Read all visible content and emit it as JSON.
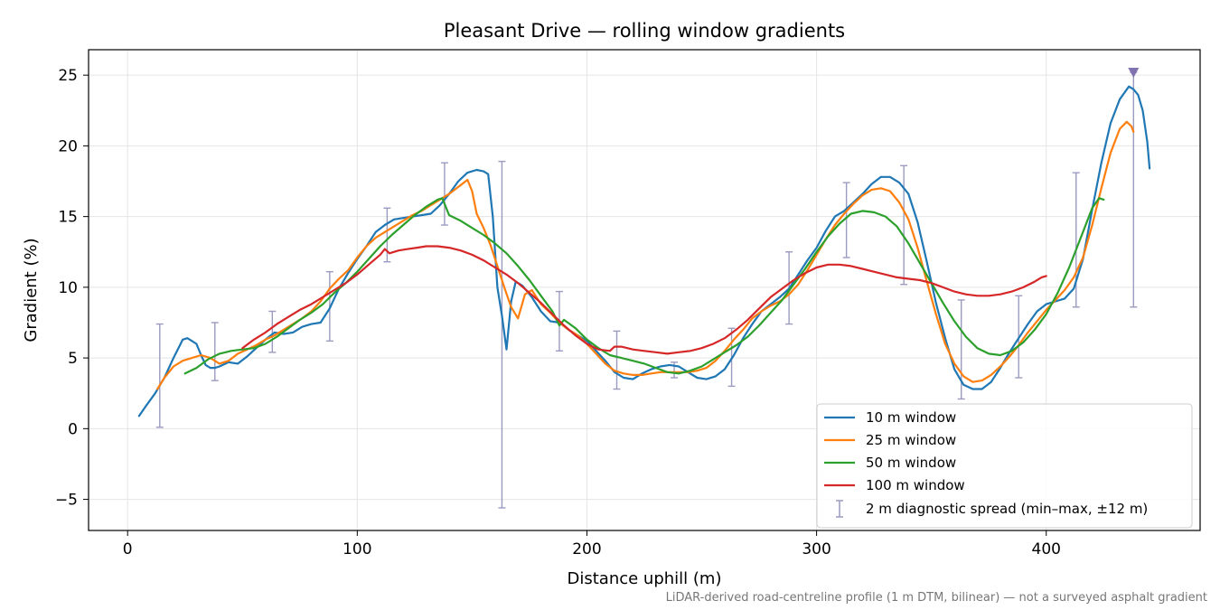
{
  "chart_data": {
    "type": "line",
    "title": "Pleasant Drive — rolling window gradients",
    "xlabel": "Distance uphill (m)",
    "ylabel": "Gradient (%)",
    "xlim": [
      -17,
      467
    ],
    "ylim": [
      -7.2,
      26.8
    ],
    "x_ticks": [
      0,
      100,
      200,
      300,
      400
    ],
    "y_ticks": [
      -5,
      0,
      5,
      10,
      15,
      20,
      25
    ],
    "y_tick_labels": [
      "−5",
      "0",
      "5",
      "10",
      "15",
      "20",
      "25"
    ],
    "grid": true,
    "legend_position": "lower-right",
    "colors": {
      "10 m window": "#1f77b4",
      "25 m window": "#ff7f0e",
      "50 m window": "#2ca02c",
      "100 m window": "#d62728",
      "spread": "#9b9bc0",
      "peak_marker": "#8172b2"
    },
    "series": [
      {
        "name": "10 m window",
        "x": [
          5,
          8,
          12,
          16,
          20,
          24,
          26,
          28,
          30,
          32,
          34,
          36,
          38,
          40,
          44,
          48,
          52,
          56,
          60,
          64,
          68,
          72,
          76,
          80,
          84,
          88,
          92,
          96,
          100,
          104,
          108,
          112,
          116,
          120,
          124,
          128,
          132,
          136,
          140,
          144,
          148,
          152,
          155,
          157,
          159,
          161,
          163,
          165,
          167,
          169,
          172,
          176,
          180,
          184,
          188,
          192,
          196,
          200,
          204,
          208,
          212,
          216,
          220,
          224,
          228,
          232,
          236,
          240,
          244,
          248,
          252,
          256,
          260,
          264,
          268,
          272,
          276,
          280,
          284,
          288,
          292,
          296,
          300,
          304,
          308,
          312,
          316,
          320,
          324,
          328,
          332,
          336,
          340,
          344,
          348,
          352,
          356,
          360,
          364,
          368,
          372,
          376,
          380,
          384,
          388,
          392,
          396,
          400,
          404,
          408,
          412,
          416,
          420,
          424,
          428,
          432,
          436,
          438,
          440,
          442,
          444,
          445
        ],
        "y": [
          0.9,
          1.6,
          2.5,
          3.6,
          5.0,
          6.3,
          6.4,
          6.2,
          6.0,
          5.2,
          4.5,
          4.3,
          4.3,
          4.4,
          4.7,
          4.6,
          5.1,
          5.7,
          6.3,
          6.8,
          6.7,
          6.8,
          7.2,
          7.4,
          7.5,
          8.5,
          9.9,
          11.0,
          12.0,
          12.9,
          13.9,
          14.4,
          14.8,
          14.9,
          15.0,
          15.1,
          15.2,
          15.8,
          16.6,
          17.5,
          18.1,
          18.3,
          18.2,
          18.0,
          15.0,
          10.0,
          8.0,
          5.6,
          9.0,
          10.4,
          10.1,
          9.3,
          8.3,
          7.6,
          7.5,
          7.0,
          6.6,
          6.2,
          5.5,
          4.8,
          4.0,
          3.6,
          3.5,
          3.9,
          4.2,
          4.4,
          4.5,
          4.4,
          4.0,
          3.6,
          3.5,
          3.7,
          4.2,
          5.2,
          6.4,
          7.4,
          8.3,
          8.8,
          9.3,
          9.9,
          10.9,
          11.9,
          12.8,
          14.0,
          15.0,
          15.4,
          16.0,
          16.6,
          17.3,
          17.8,
          17.8,
          17.4,
          16.6,
          14.6,
          11.8,
          8.9,
          6.4,
          4.2,
          3.1,
          2.8,
          2.8,
          3.3,
          4.3,
          5.4,
          6.4,
          7.4,
          8.3,
          8.8,
          9.0,
          9.2,
          9.9,
          12.0,
          15.5,
          18.8,
          21.6,
          23.3,
          24.2,
          24.0,
          23.6,
          22.5,
          20.3,
          18.4
        ]
      },
      {
        "name": "25 m window",
        "x": [
          13,
          16,
          20,
          24,
          28,
          32,
          36,
          40,
          44,
          48,
          52,
          56,
          60,
          64,
          68,
          72,
          76,
          80,
          84,
          88,
          92,
          96,
          100,
          104,
          108,
          112,
          116,
          120,
          124,
          128,
          132,
          136,
          140,
          144,
          148,
          150,
          152,
          155,
          158,
          161,
          164,
          167,
          170,
          173,
          176,
          180,
          184,
          188,
          192,
          196,
          200,
          204,
          208,
          212,
          216,
          220,
          224,
          228,
          232,
          236,
          240,
          244,
          248,
          252,
          256,
          260,
          264,
          268,
          272,
          276,
          280,
          284,
          288,
          292,
          296,
          300,
          304,
          308,
          312,
          316,
          320,
          324,
          328,
          332,
          336,
          340,
          344,
          348,
          352,
          356,
          360,
          364,
          368,
          372,
          376,
          380,
          384,
          388,
          392,
          396,
          400,
          404,
          408,
          412,
          416,
          420,
          424,
          428,
          432,
          435,
          437,
          438
        ],
        "y": [
          2.8,
          3.6,
          4.4,
          4.8,
          5.0,
          5.2,
          5.0,
          4.6,
          4.8,
          5.3,
          5.6,
          5.9,
          6.3,
          6.6,
          7.0,
          7.4,
          7.8,
          8.3,
          9.0,
          9.9,
          10.6,
          11.2,
          12.1,
          12.9,
          13.5,
          13.9,
          14.3,
          14.7,
          15.1,
          15.4,
          15.8,
          16.2,
          16.6,
          17.1,
          17.6,
          16.8,
          15.2,
          14.2,
          13.0,
          11.5,
          10.0,
          8.6,
          7.8,
          9.5,
          9.8,
          8.8,
          8.2,
          7.5,
          7.0,
          6.6,
          6.0,
          5.3,
          4.6,
          4.1,
          3.9,
          3.8,
          3.8,
          3.9,
          4.0,
          4.0,
          4.0,
          4.0,
          4.1,
          4.3,
          4.8,
          5.5,
          6.3,
          7.0,
          7.8,
          8.3,
          8.7,
          9.0,
          9.5,
          10.2,
          11.2,
          12.3,
          13.4,
          14.4,
          15.2,
          15.9,
          16.5,
          16.9,
          17.0,
          16.8,
          16.0,
          14.8,
          12.8,
          10.4,
          8.1,
          6.0,
          4.6,
          3.7,
          3.3,
          3.4,
          3.8,
          4.4,
          5.1,
          5.9,
          6.8,
          7.6,
          8.4,
          9.1,
          9.8,
          10.7,
          12.1,
          14.4,
          17.0,
          19.5,
          21.2,
          21.7,
          21.4,
          21.0
        ]
      },
      {
        "name": "50 m window",
        "x": [
          25,
          30,
          35,
          40,
          45,
          50,
          55,
          60,
          65,
          70,
          75,
          80,
          85,
          90,
          95,
          100,
          105,
          110,
          115,
          120,
          125,
          130,
          135,
          137,
          140,
          145,
          150,
          155,
          160,
          165,
          170,
          175,
          180,
          185,
          188,
          190,
          195,
          200,
          205,
          210,
          215,
          220,
          225,
          230,
          235,
          240,
          245,
          250,
          255,
          260,
          265,
          270,
          275,
          280,
          285,
          290,
          295,
          300,
          305,
          310,
          315,
          320,
          325,
          330,
          335,
          340,
          345,
          350,
          355,
          360,
          365,
          370,
          375,
          380,
          385,
          390,
          395,
          400,
          405,
          410,
          415,
          420,
          423,
          425
        ],
        "y": [
          3.9,
          4.3,
          4.9,
          5.3,
          5.5,
          5.6,
          5.7,
          6.0,
          6.5,
          7.1,
          7.7,
          8.2,
          8.8,
          9.6,
          10.3,
          11.1,
          12.0,
          12.9,
          13.7,
          14.4,
          15.1,
          15.7,
          16.2,
          16.3,
          15.1,
          14.7,
          14.2,
          13.7,
          13.1,
          12.4,
          11.5,
          10.5,
          9.4,
          8.3,
          7.3,
          7.7,
          7.1,
          6.3,
          5.7,
          5.2,
          5.0,
          4.8,
          4.6,
          4.3,
          4.0,
          3.9,
          4.1,
          4.4,
          4.9,
          5.4,
          5.9,
          6.5,
          7.3,
          8.2,
          9.1,
          10.2,
          11.3,
          12.5,
          13.6,
          14.5,
          15.2,
          15.4,
          15.3,
          15.0,
          14.3,
          13.1,
          11.7,
          10.3,
          8.9,
          7.6,
          6.5,
          5.7,
          5.3,
          5.2,
          5.5,
          6.1,
          7.0,
          8.1,
          9.6,
          11.4,
          13.5,
          15.6,
          16.3,
          16.2
        ]
      },
      {
        "name": "100 m window",
        "x": [
          50,
          55,
          60,
          65,
          70,
          75,
          80,
          85,
          90,
          95,
          100,
          105,
          110,
          112,
          114,
          118,
          122,
          126,
          130,
          135,
          140,
          145,
          150,
          155,
          160,
          165,
          170,
          175,
          180,
          185,
          190,
          195,
          200,
          205,
          210,
          212,
          215,
          220,
          225,
          230,
          235,
          240,
          245,
          250,
          255,
          260,
          265,
          270,
          275,
          280,
          285,
          290,
          295,
          300,
          305,
          310,
          315,
          320,
          325,
          330,
          335,
          340,
          345,
          350,
          355,
          360,
          365,
          370,
          375,
          380,
          385,
          390,
          395,
          398,
          400
        ],
        "y": [
          5.7,
          6.3,
          6.8,
          7.4,
          7.9,
          8.4,
          8.8,
          9.3,
          9.8,
          10.3,
          10.9,
          11.6,
          12.3,
          12.7,
          12.4,
          12.6,
          12.7,
          12.8,
          12.9,
          12.9,
          12.8,
          12.6,
          12.3,
          11.9,
          11.4,
          10.9,
          10.3,
          9.6,
          8.9,
          8.1,
          7.3,
          6.6,
          6.0,
          5.6,
          5.5,
          5.8,
          5.8,
          5.6,
          5.5,
          5.4,
          5.3,
          5.4,
          5.5,
          5.7,
          6.0,
          6.4,
          7.0,
          7.7,
          8.5,
          9.3,
          9.9,
          10.5,
          11.0,
          11.4,
          11.6,
          11.6,
          11.5,
          11.3,
          11.1,
          10.9,
          10.7,
          10.6,
          10.5,
          10.3,
          10.0,
          9.7,
          9.5,
          9.4,
          9.4,
          9.5,
          9.7,
          10.0,
          10.4,
          10.7,
          10.8
        ]
      }
    ],
    "spread": {
      "name": "2 m diagnostic spread (min–max, ±12 m)",
      "points": [
        {
          "x": 14,
          "min": 0.1,
          "max": 7.4
        },
        {
          "x": 38,
          "min": 3.4,
          "max": 7.5
        },
        {
          "x": 63,
          "min": 5.4,
          "max": 8.3
        },
        {
          "x": 88,
          "min": 6.2,
          "max": 11.1
        },
        {
          "x": 113,
          "min": 11.8,
          "max": 15.6
        },
        {
          "x": 138,
          "min": 14.4,
          "max": 18.8
        },
        {
          "x": 163,
          "min": -5.6,
          "max": 18.9
        },
        {
          "x": 188,
          "min": 5.5,
          "max": 9.7
        },
        {
          "x": 213,
          "min": 2.8,
          "max": 6.9
        },
        {
          "x": 238,
          "min": 3.6,
          "max": 4.7
        },
        {
          "x": 263,
          "min": 3.0,
          "max": 7.1
        },
        {
          "x": 288,
          "min": 7.4,
          "max": 12.5
        },
        {
          "x": 313,
          "min": 12.1,
          "max": 17.4
        },
        {
          "x": 338,
          "min": 10.2,
          "max": 18.6
        },
        {
          "x": 363,
          "min": 2.1,
          "max": 9.1
        },
        {
          "x": 388,
          "min": 3.6,
          "max": 9.4
        },
        {
          "x": 413,
          "min": 8.6,
          "max": 18.1
        },
        {
          "x": 438,
          "min": 8.6,
          "max": 25.2
        }
      ]
    },
    "peak_marker": {
      "x": 438,
      "y": 25.2
    },
    "footnote": "LiDAR-derived road-centreline profile (1 m DTM, bilinear) — not a surveyed asphalt gradient"
  }
}
